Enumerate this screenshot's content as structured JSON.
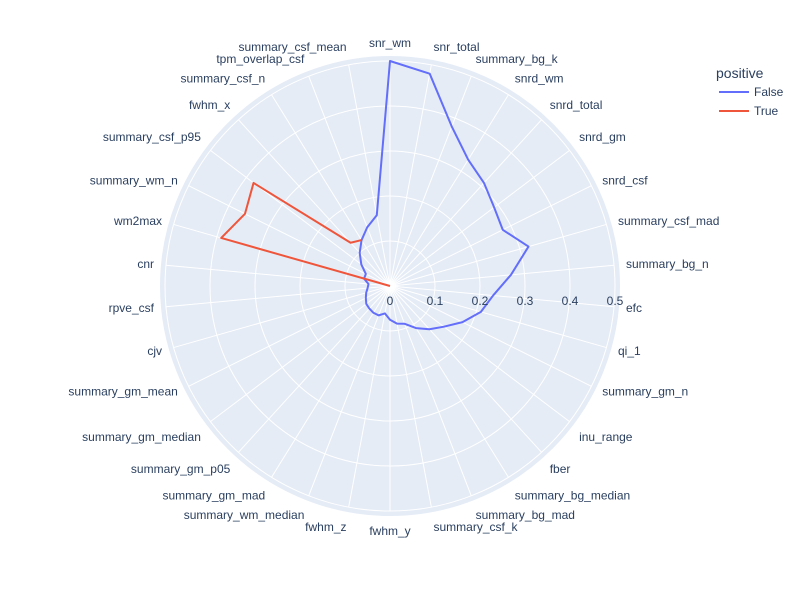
{
  "chart_data": {
    "type": "radar",
    "legend": {
      "title": "positive",
      "placement": "top-right",
      "entries": [
        {
          "name": "False",
          "color": "#636efa"
        },
        {
          "name": "True",
          "color": "#EF553B"
        }
      ]
    },
    "radial_axis": {
      "range": [
        0,
        0.5
      ],
      "ticks": [
        0,
        0.1,
        0.2,
        0.3,
        0.4,
        0.5
      ]
    },
    "categories": [
      "snr_wm",
      "snr_total",
      "summary_bg_k",
      "snrd_wm",
      "snrd_total",
      "snrd_gm",
      "snrd_csf",
      "summary_csf_mad",
      "summary_bg_n",
      "efc",
      "qi_1",
      "summary_gm_n",
      "inu_range",
      "fber",
      "summary_bg_median",
      "summary_bg_mad",
      "summary_csf_k",
      "fwhm_y",
      "fwhm_z",
      "summary_wm_median",
      "summary_gm_mad",
      "summary_gm_p05",
      "summary_gm_median",
      "summary_gm_mean",
      "cjv",
      "rpve_csf",
      "cnr",
      "wm2max",
      "summary_wm_n",
      "summary_csf_p95",
      "fwhm_x",
      "summary_csf_n",
      "tpm_overlap_csf",
      "summary_csf_mean"
    ],
    "series": [
      {
        "name": "False",
        "color": "#636efa",
        "values": [
          0.5,
          0.48,
          0.38,
          0.33,
          0.31,
          0.29,
          0.28,
          0.32,
          0.27,
          0.23,
          0.21,
          0.18,
          0.15,
          0.13,
          0.11,
          0.09,
          0.085,
          0.075,
          0.062,
          0.07,
          0.07,
          0.068,
          0.066,
          0.06,
          0.055,
          0.05,
          0.048,
          0.06,
          0.06,
          0.08,
          0.1,
          0.12,
          0.14,
          0.16
        ]
      },
      {
        "name": "True",
        "color": "#EF553B",
        "values": [
          null,
          null,
          null,
          null,
          null,
          null,
          null,
          null,
          null,
          null,
          null,
          null,
          null,
          null,
          null,
          null,
          null,
          null,
          null,
          null,
          null,
          null,
          null,
          null,
          null,
          null,
          0.0,
          0.39,
          0.36,
          0.38,
          0.13,
          0.12,
          null,
          null
        ]
      }
    ]
  }
}
